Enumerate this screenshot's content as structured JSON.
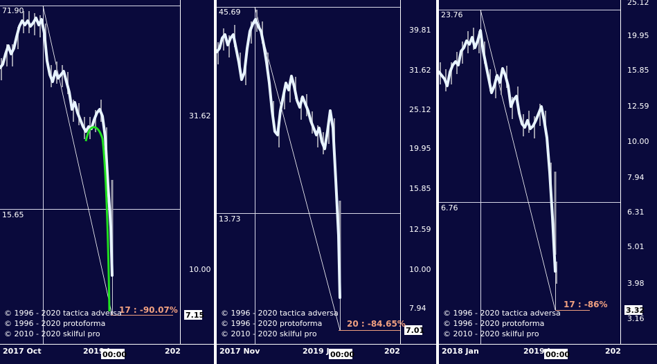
{
  "colors": {
    "background": "#0a0a3c",
    "grid": "#d8d8e8",
    "price_line": "#e8f4ff",
    "bars": "#9a9aaa",
    "fit_curve": "#20e020",
    "annotation": "#f0a080"
  },
  "time_label": "00:00",
  "copyright": [
    "© 1996 - 2020 tactica adversa",
    "© 1996 - 2020 protoforma",
    "© 2010 - 2020 skilful pro"
  ],
  "chart_data": [
    {
      "type": "line",
      "scale": "log",
      "ylim": [
        6.0,
        90.0
      ],
      "y_ticks": [
        31.62,
        10.0
      ],
      "last_price": 7.15,
      "peak_label": "71.90",
      "level_label": "15.65",
      "level_value": 15.65,
      "annotation": "17 : -90.07%",
      "x_labels": [
        "2017 Oct",
        "2019 J",
        "202"
      ],
      "has_fit_curve": true
    },
    {
      "type": "line",
      "scale": "log",
      "ylim": [
        6.0,
        55.0
      ],
      "y_ticks": [
        39.81,
        31.62,
        25.12,
        19.95,
        15.85,
        12.59,
        10.0,
        7.94
      ],
      "last_price": 7.01,
      "peak_label": "45.69",
      "level_label": "13.73",
      "level_value": 13.73,
      "annotation": "20 : -84.65%",
      "x_labels": [
        "2017 Nov",
        "2019 J",
        "202"
      ],
      "has_fit_curve": false
    },
    {
      "type": "line",
      "scale": "log",
      "ylim": [
        2.8,
        25.12
      ],
      "y_ticks": [
        25.12,
        19.95,
        15.85,
        12.59,
        10.0,
        7.94,
        6.31,
        5.01,
        3.98,
        3.16
      ],
      "last_price": 3.32,
      "peak_label": "23.76",
      "level_label": "6.76",
      "level_value": 6.76,
      "annotation": "17 : -86%",
      "x_labels": [
        "2018 Jan",
        "2019 J",
        "202"
      ],
      "has_fit_curve": false
    }
  ]
}
